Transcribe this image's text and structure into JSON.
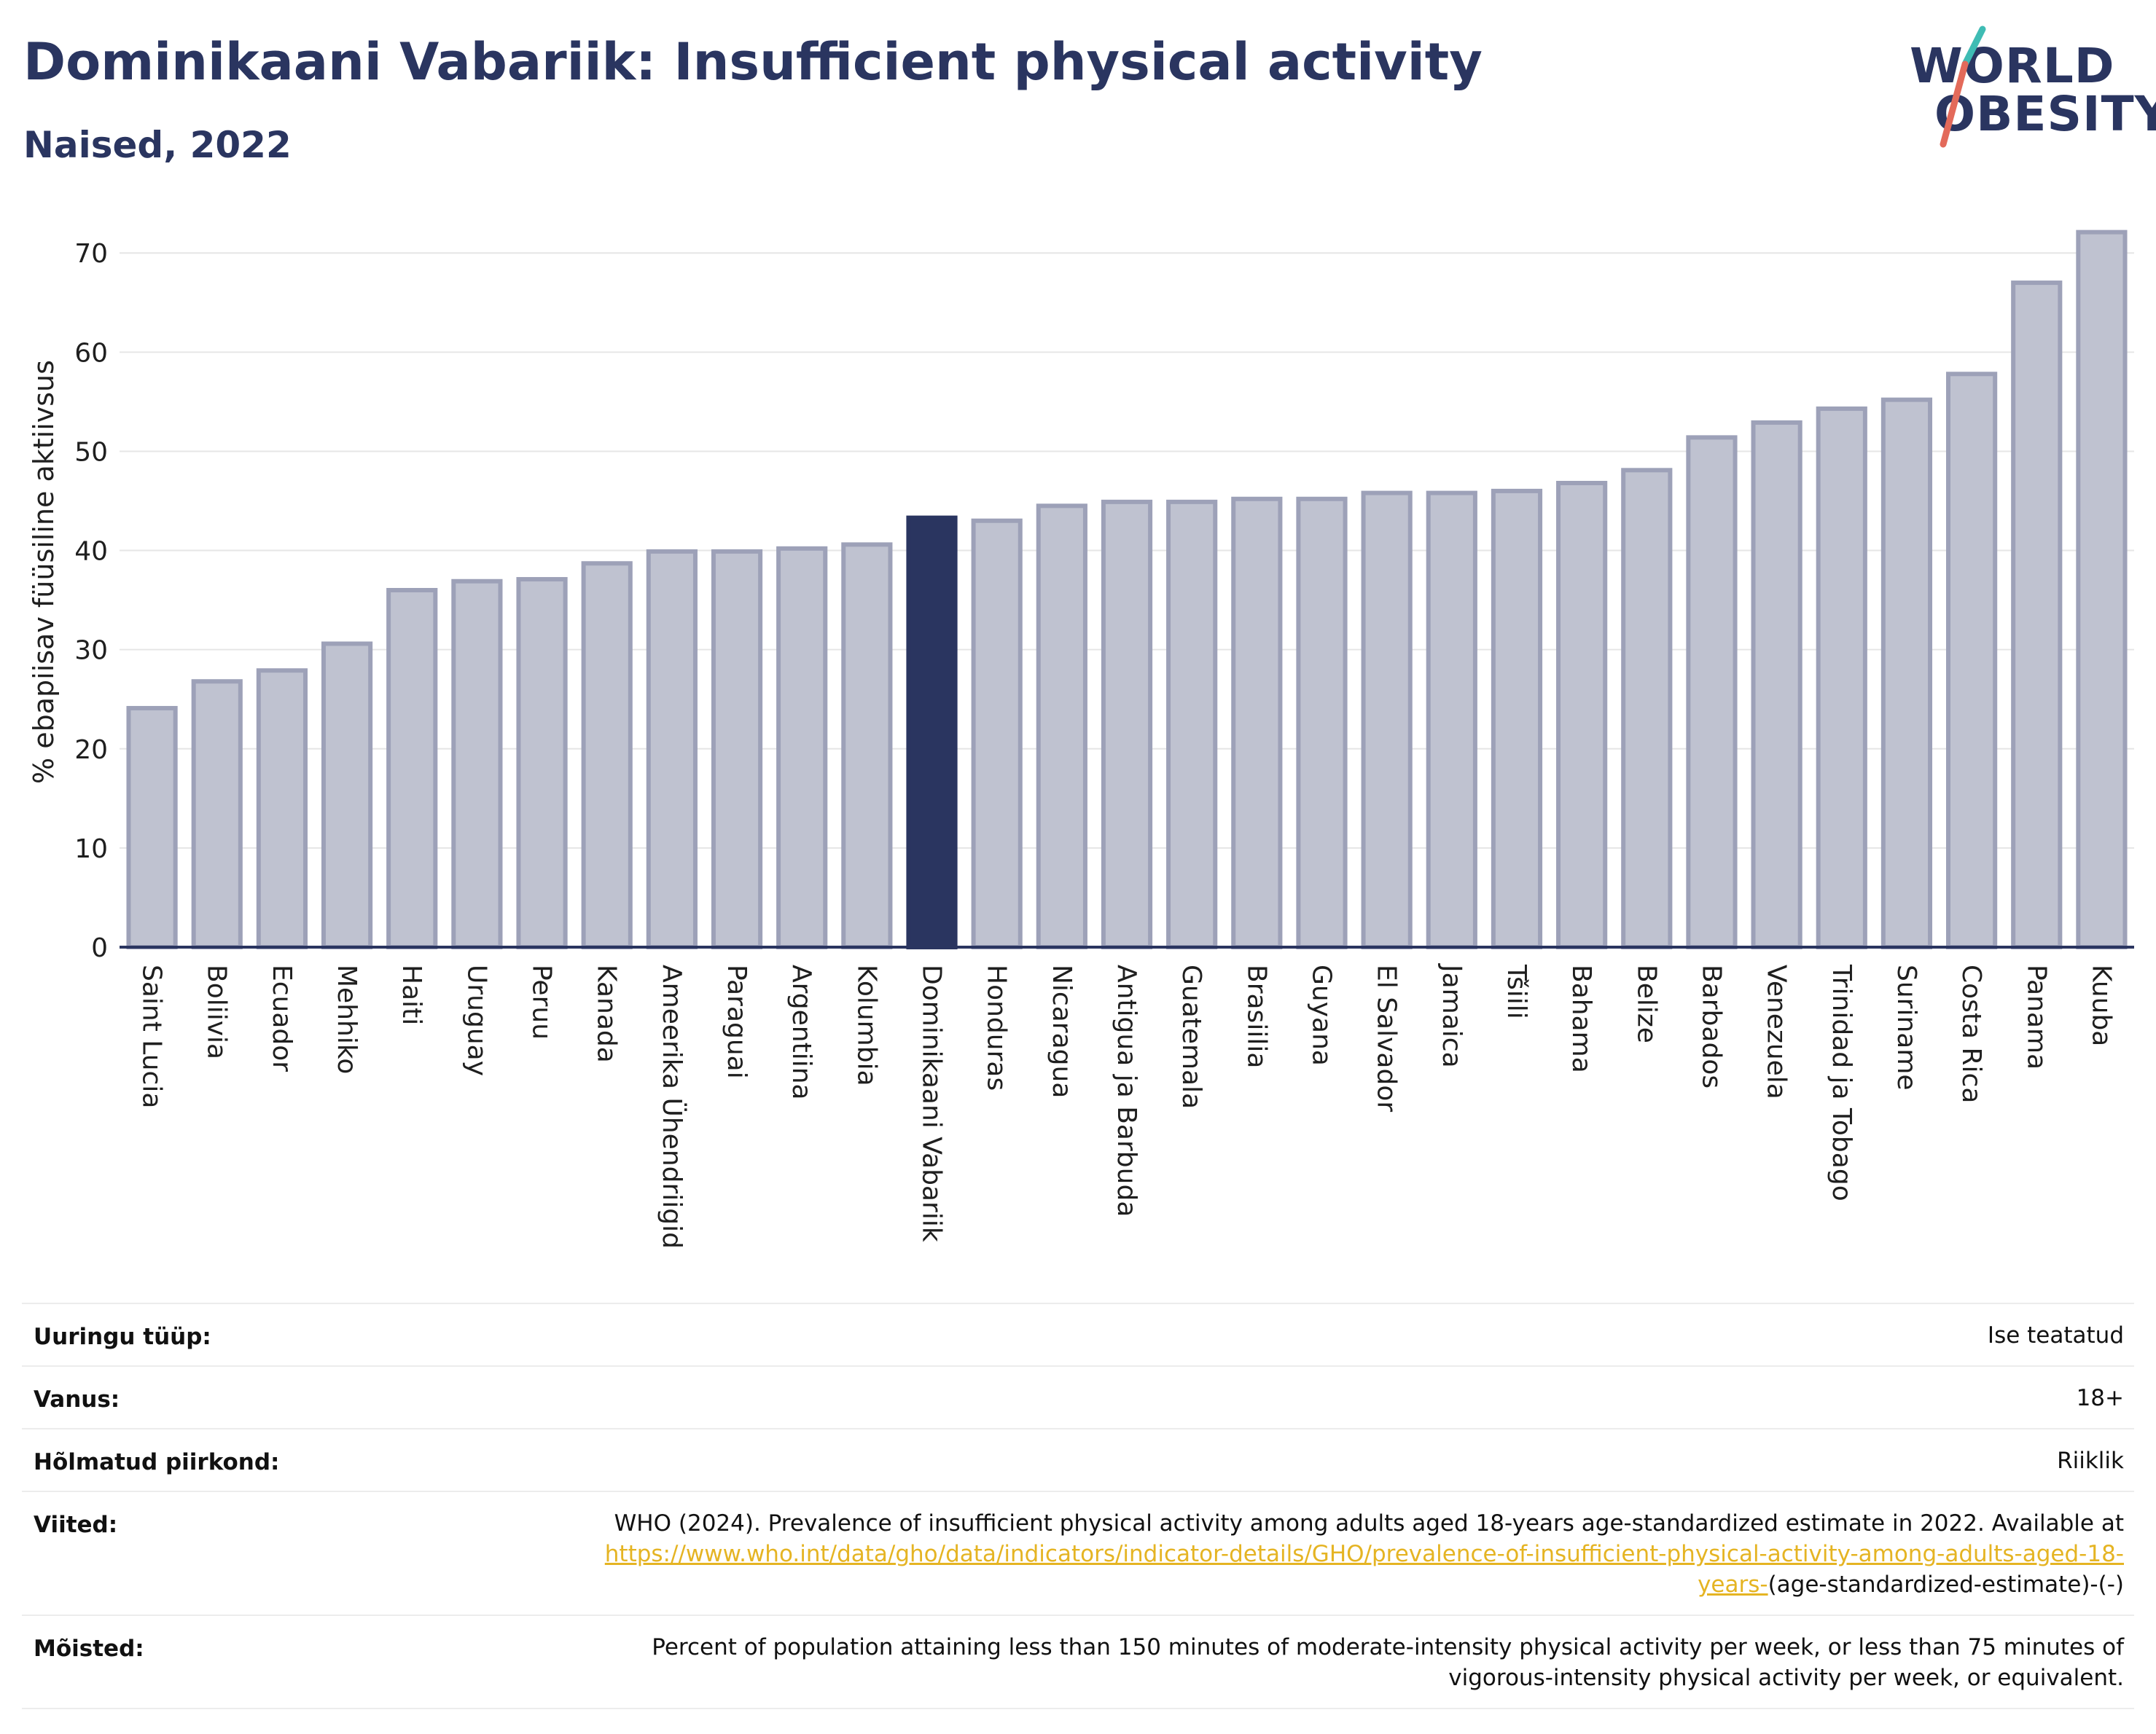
{
  "header": {
    "title": "Dominikaani Vabariik: Insufficient physical activity",
    "subtitle": "Naised, 2022"
  },
  "logo": {
    "line1": "WORLD",
    "line2": "OBESITY"
  },
  "chart_data": {
    "type": "bar",
    "title": "Dominikaani Vabariik: Insufficient physical activity",
    "subtitle": "Naised, 2022",
    "xlabel": "",
    "ylabel": "% ebapiisav füüsiline aktiivsus",
    "ylim": [
      0,
      72
    ],
    "yticks": [
      0,
      10,
      20,
      30,
      40,
      50,
      60,
      70
    ],
    "grid": true,
    "highlight": "Dominikaani Vabariik",
    "colors": {
      "bar": "#bfc2d0",
      "bar_edge": "#9da1b8",
      "highlight": "#2a3560",
      "grid": "#e6e6e6",
      "axis": "#2a3560"
    },
    "categories": [
      "Saint Lucia",
      "Boliivia",
      "Ecuador",
      "Mehhiko",
      "Haiti",
      "Uruguay",
      "Peruu",
      "Kanada",
      "Ameerika Ühendriigid",
      "Paraguai",
      "Argentiina",
      "Kolumbia",
      "Dominikaani Vabariik",
      "Honduras",
      "Nicaragua",
      "Antigua ja Barbuda",
      "Guatemala",
      "Brasiilia",
      "Guyana",
      "El Salvador",
      "Jamaica",
      "Tšiili",
      "Bahama",
      "Belize",
      "Barbados",
      "Venezuela",
      "Trinidad ja Tobago",
      "Suriname",
      "Costa Rica",
      "Panama",
      "Kuuba"
    ],
    "values": [
      24.1,
      26.8,
      27.9,
      30.6,
      36.0,
      36.9,
      37.1,
      38.7,
      39.9,
      39.9,
      40.2,
      40.6,
      43.3,
      43.0,
      44.5,
      44.9,
      44.9,
      45.2,
      45.2,
      45.8,
      45.8,
      46.0,
      46.8,
      48.1,
      51.4,
      52.9,
      54.3,
      55.2,
      57.8,
      67.0,
      72.1
    ]
  },
  "info": [
    {
      "key": "Uuringu tüüp:",
      "value": "Ise teatatud"
    },
    {
      "key": "Vanus:",
      "value": "18+"
    },
    {
      "key": "Hõlmatud piirkond:",
      "value": "Riiklik"
    },
    {
      "key": "Viited:",
      "value_pre": "WHO (2024). Prevalence of insufficient physical activity among adults aged 18-years age-standardized estimate in 2022. Available at",
      "link": "https://www.who.int/data/gho/data/indicators/indicator-details/GHO/prevalence-of-insufficient-physical-activity-among-adults-aged-18-years-",
      "value_post": "(age-standardized-estimate)-(-)"
    },
    {
      "key": "Mõisted:",
      "value": "Percent of population attaining less than 150 minutes of moderate-intensity physical activity per week, or less than 75 minutes of vigorous-intensity physical activity per week, or equivalent."
    }
  ]
}
